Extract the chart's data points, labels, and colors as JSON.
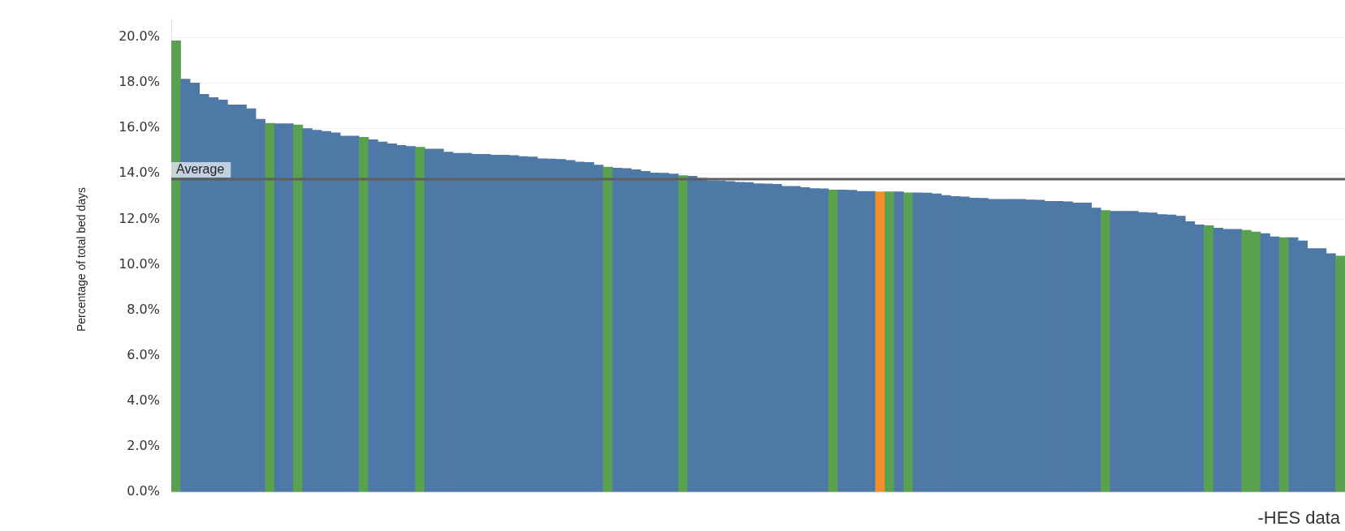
{
  "chart_data": {
    "type": "bar",
    "ylabel": "Percentage of total bed days",
    "categories": [
      null,
      null,
      null,
      null,
      null,
      null,
      null,
      null,
      null,
      null,
      null,
      null,
      null,
      null,
      null,
      null,
      null,
      null,
      null,
      null,
      null,
      null,
      null,
      null,
      null,
      null,
      null,
      null,
      null,
      null,
      null,
      null,
      null,
      null,
      null,
      null,
      null,
      null,
      null,
      null,
      null,
      null,
      null,
      null,
      null,
      null,
      null,
      null,
      null,
      null,
      null,
      null,
      null,
      null,
      null,
      null,
      null,
      null,
      null,
      null,
      null,
      null,
      null,
      null,
      null,
      null,
      null,
      null,
      null,
      null,
      null,
      null,
      null,
      null,
      null,
      null,
      null,
      null,
      null,
      null,
      null,
      null,
      null,
      null,
      null,
      null,
      null,
      null,
      null,
      null,
      null,
      null,
      null,
      null,
      null,
      null,
      null,
      null,
      null,
      null,
      null,
      null,
      null,
      null,
      null,
      null,
      null,
      null,
      null,
      null,
      null,
      null,
      null,
      null,
      null,
      null,
      null,
      null,
      null,
      null,
      null,
      null,
      null,
      null,
      null
    ],
    "values": [
      19.85,
      18.16,
      17.99,
      17.49,
      17.35,
      17.24,
      17.03,
      17.03,
      16.86,
      16.4,
      16.22,
      16.2,
      16.2,
      16.15,
      15.99,
      15.92,
      15.86,
      15.8,
      15.66,
      15.66,
      15.6,
      15.5,
      15.4,
      15.32,
      15.25,
      15.2,
      15.17,
      15.09,
      15.09,
      14.95,
      14.9,
      14.9,
      14.86,
      14.86,
      14.82,
      14.82,
      14.8,
      14.76,
      14.74,
      14.66,
      14.65,
      14.63,
      14.59,
      14.52,
      14.5,
      14.38,
      14.29,
      14.25,
      14.23,
      14.18,
      14.11,
      14.04,
      14.03,
      13.99,
      13.92,
      13.89,
      13.8,
      13.7,
      13.69,
      13.66,
      13.63,
      13.62,
      13.56,
      13.55,
      13.54,
      13.45,
      13.45,
      13.39,
      13.35,
      13.34,
      13.29,
      13.29,
      13.28,
      13.22,
      13.22,
      13.21,
      13.21,
      13.21,
      13.16,
      13.16,
      13.15,
      13.12,
      13.05,
      13.0,
      12.98,
      12.93,
      12.92,
      12.88,
      12.88,
      12.88,
      12.88,
      12.85,
      12.84,
      12.79,
      12.79,
      12.77,
      12.72,
      12.72,
      12.49,
      12.39,
      12.35,
      12.35,
      12.35,
      12.3,
      12.28,
      12.21,
      12.19,
      12.14,
      11.9,
      11.75,
      11.72,
      11.61,
      11.56,
      11.56,
      11.51,
      11.44,
      11.37,
      11.23,
      11.19,
      11.19,
      11.05,
      10.71,
      10.71,
      10.49,
      10.38
    ],
    "colors": [
      "#59a14f",
      "#4e79a7",
      "#4e79a7",
      "#4e79a7",
      "#4e79a7",
      "#4e79a7",
      "#4e79a7",
      "#4e79a7",
      "#4e79a7",
      "#4e79a7",
      "#59a14f",
      "#4e79a7",
      "#4e79a7",
      "#59a14f",
      "#4e79a7",
      "#4e79a7",
      "#4e79a7",
      "#4e79a7",
      "#4e79a7",
      "#4e79a7",
      "#59a14f",
      "#4e79a7",
      "#4e79a7",
      "#4e79a7",
      "#4e79a7",
      "#4e79a7",
      "#59a14f",
      "#4e79a7",
      "#4e79a7",
      "#4e79a7",
      "#4e79a7",
      "#4e79a7",
      "#4e79a7",
      "#4e79a7",
      "#4e79a7",
      "#4e79a7",
      "#4e79a7",
      "#4e79a7",
      "#4e79a7",
      "#4e79a7",
      "#4e79a7",
      "#4e79a7",
      "#4e79a7",
      "#4e79a7",
      "#4e79a7",
      "#4e79a7",
      "#59a14f",
      "#4e79a7",
      "#4e79a7",
      "#4e79a7",
      "#4e79a7",
      "#4e79a7",
      "#4e79a7",
      "#4e79a7",
      "#59a14f",
      "#4e79a7",
      "#4e79a7",
      "#4e79a7",
      "#4e79a7",
      "#4e79a7",
      "#4e79a7",
      "#4e79a7",
      "#4e79a7",
      "#4e79a7",
      "#4e79a7",
      "#4e79a7",
      "#4e79a7",
      "#4e79a7",
      "#4e79a7",
      "#4e79a7",
      "#59a14f",
      "#4e79a7",
      "#4e79a7",
      "#4e79a7",
      "#4e79a7",
      "#f28e2b",
      "#59a14f",
      "#4e79a7",
      "#59a14f",
      "#4e79a7",
      "#4e79a7",
      "#4e79a7",
      "#4e79a7",
      "#4e79a7",
      "#4e79a7",
      "#4e79a7",
      "#4e79a7",
      "#4e79a7",
      "#4e79a7",
      "#4e79a7",
      "#4e79a7",
      "#4e79a7",
      "#4e79a7",
      "#4e79a7",
      "#4e79a7",
      "#4e79a7",
      "#4e79a7",
      "#4e79a7",
      "#4e79a7",
      "#59a14f",
      "#4e79a7",
      "#4e79a7",
      "#4e79a7",
      "#4e79a7",
      "#4e79a7",
      "#4e79a7",
      "#4e79a7",
      "#4e79a7",
      "#4e79a7",
      "#4e79a7",
      "#59a14f",
      "#4e79a7",
      "#4e79a7",
      "#4e79a7",
      "#59a14f",
      "#59a14f",
      "#4e79a7",
      "#4e79a7",
      "#59a14f",
      "#4e79a7",
      "#4e79a7",
      "#4e79a7",
      "#4e79a7",
      "#4e79a7",
      "#59a14f"
    ],
    "ylim": [
      0,
      20.8
    ],
    "yticks": [
      {
        "value": 0,
        "label": "0.0%"
      },
      {
        "value": 2,
        "label": "2.0%"
      },
      {
        "value": 4,
        "label": "4.0%"
      },
      {
        "value": 6,
        "label": "6.0%"
      },
      {
        "value": 8,
        "label": "8.0%"
      },
      {
        "value": 10,
        "label": "10.0%"
      },
      {
        "value": 12,
        "label": "12.0%"
      },
      {
        "value": 14,
        "label": "14.0%"
      },
      {
        "value": 16,
        "label": "16.0%"
      },
      {
        "value": 18,
        "label": "18.0%"
      },
      {
        "value": 20,
        "label": "20.0%"
      }
    ],
    "grid": "y",
    "tick_labels": "y",
    "ref_lines": [
      {
        "axis": "y",
        "value": 13.76,
        "label": "Average",
        "color": "#5f5f5f"
      }
    ],
    "annotations": [
      "-HES data"
    ]
  }
}
